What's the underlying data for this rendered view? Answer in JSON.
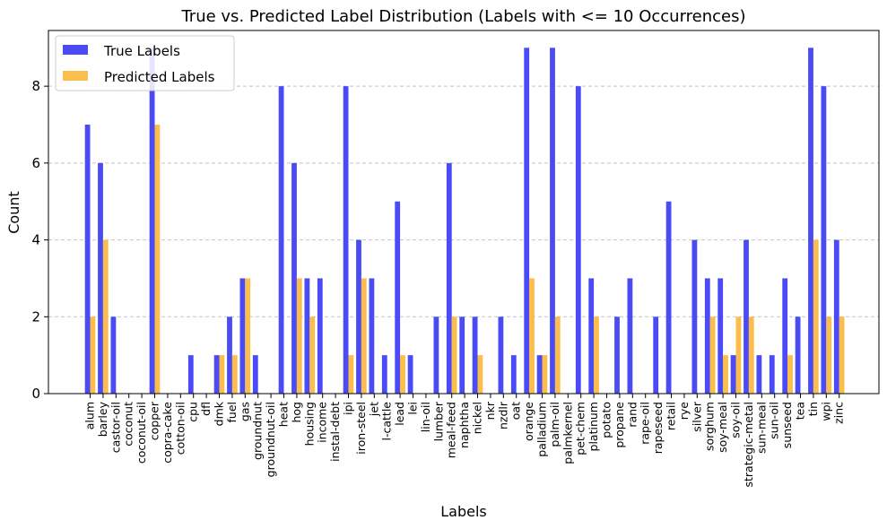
{
  "chart_data": {
    "type": "bar",
    "title": "True vs. Predicted Label Distribution (Labels with <= 10 Occurrences)",
    "xlabel": "Labels",
    "ylabel": "Count",
    "ylim": [
      0,
      9.45
    ],
    "yticks": [
      0,
      2,
      4,
      6,
      8
    ],
    "grid": "y-dashed",
    "legend": "top-left",
    "categories": [
      "alum",
      "barley",
      "castor-oil",
      "coconut",
      "coconut-oil",
      "copper",
      "copra-cake",
      "cotton-oil",
      "cpu",
      "dfl",
      "dmk",
      "fuel",
      "gas",
      "groundnut",
      "groundnut-oil",
      "heat",
      "hog",
      "housing",
      "income",
      "instal-debt",
      "ipi",
      "iron-steel",
      "jet",
      "l-cattle",
      "lead",
      "lei",
      "lin-oil",
      "lumber",
      "meal-feed",
      "naphtha",
      "nickel",
      "nkr",
      "nzdlr",
      "oat",
      "orange",
      "palladium",
      "palm-oil",
      "palmkernel",
      "pet-chem",
      "platinum",
      "potato",
      "propane",
      "rand",
      "rape-oil",
      "rapeseed",
      "retail",
      "rye",
      "silver",
      "sorghum",
      "soy-meal",
      "soy-oil",
      "strategic-metal",
      "sun-meal",
      "sun-oil",
      "sunseed",
      "tea",
      "tin",
      "wpi",
      "zinc"
    ],
    "series": [
      {
        "name": "True Labels",
        "color": "#4b4bf5",
        "values": [
          7,
          6,
          2,
          0,
          0,
          9,
          0,
          0,
          1,
          0,
          1,
          2,
          3,
          1,
          0,
          8,
          6,
          3,
          3,
          0,
          8,
          4,
          3,
          1,
          5,
          1,
          0,
          2,
          6,
          2,
          2,
          0,
          2,
          1,
          9,
          1,
          9,
          0,
          8,
          3,
          0,
          2,
          3,
          0,
          2,
          5,
          0,
          4,
          3,
          3,
          1,
          4,
          1,
          1,
          3,
          2,
          9,
          8,
          4
        ]
      },
      {
        "name": "Predicted Labels",
        "color": "#fbbd4b",
        "values": [
          2,
          4,
          0,
          0,
          0,
          7,
          0,
          0,
          0,
          0,
          1,
          1,
          3,
          0,
          0,
          0,
          3,
          2,
          0,
          0,
          1,
          3,
          0,
          0,
          1,
          0,
          0,
          0,
          2,
          0,
          1,
          0,
          0,
          0,
          3,
          1,
          2,
          0,
          0,
          2,
          0,
          0,
          0,
          0,
          0,
          0,
          0,
          0,
          2,
          1,
          2,
          2,
          0,
          0,
          1,
          0,
          4,
          2,
          2
        ]
      }
    ]
  }
}
